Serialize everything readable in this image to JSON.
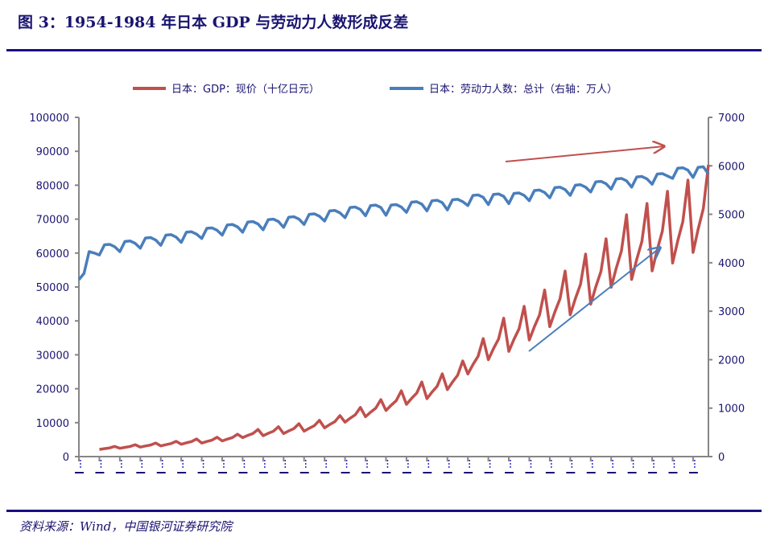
{
  "title": "图 3：1954-1984 年日本 GDP 与劳动力人数形成反差",
  "source": "资料来源：Wind，中国银河证券研究院",
  "colors": {
    "gdp": "#C0504D",
    "labor": "#4A7EBB",
    "axis": "#868686",
    "text": "#1a1470"
  },
  "chart_data": {
    "type": "line",
    "title": "1954-1984 年日本 GDP 与劳动力人数形成反差",
    "x_start": "1954Q1",
    "x_end": "1984Q4",
    "frequency": "quarterly",
    "legend_position": "top",
    "grid": false,
    "y_left": {
      "ylim": [
        0,
        100000
      ],
      "ticks": [
        0,
        10000,
        20000,
        30000,
        40000,
        50000,
        60000,
        70000,
        80000,
        90000,
        100000
      ]
    },
    "y_right": {
      "ylim": [
        0,
        7000
      ],
      "ticks": [
        0,
        1000,
        2000,
        3000,
        4000,
        5000,
        6000,
        7000
      ]
    },
    "series": [
      {
        "name": "日本：GDP：现价（十亿日元）",
        "axis": "left",
        "start_index": 4,
        "values": [
          2100,
          2340,
          2550,
          3000,
          2450,
          2730,
          2980,
          3500,
          2800,
          3120,
          3400,
          4000,
          3150,
          3510,
          3830,
          4500,
          3640,
          4060,
          4420,
          5200,
          3990,
          4450,
          4850,
          5700,
          4620,
          5150,
          5610,
          6600,
          5600,
          6240,
          6800,
          8000,
          6160,
          6860,
          7480,
          8800,
          6790,
          7570,
          8250,
          9700,
          7490,
          8350,
          9100,
          10700,
          8470,
          9440,
          10290,
          12100,
          10150,
          11310,
          12330,
          14500,
          11760,
          13100,
          14280,
          16800,
          13580,
          15130,
          16490,
          19400,
          15400,
          17160,
          18700,
          22000,
          17080,
          19030,
          20740,
          24400,
          19740,
          22000,
          23970,
          28200,
          24360,
          27140,
          29580,
          34800,
          28560,
          31820,
          34680,
          40800,
          31010,
          34550,
          37660,
          44300,
          34370,
          38300,
          41740,
          49100,
          38290,
          42670,
          46500,
          54700,
          41790,
          46570,
          50750,
          59700,
          44940,
          50080,
          54570,
          64200,
          49910,
          55610,
          60610,
          71300,
          52220,
          58190,
          63410,
          74600,
          54740,
          61000,
          66470,
          78200,
          57050,
          63570,
          69280,
          81500,
          60200,
          67080,
          73100,
          86000
        ]
      },
      {
        "name": "日本：劳动力人数：总计（右轴：万人）",
        "axis": "right",
        "start_index": 0,
        "values": [
          3650,
          3780,
          4230,
          4200,
          4160,
          4370,
          4380,
          4330,
          4230,
          4440,
          4450,
          4400,
          4300,
          4510,
          4520,
          4470,
          4360,
          4570,
          4580,
          4530,
          4420,
          4630,
          4640,
          4590,
          4500,
          4710,
          4720,
          4670,
          4570,
          4780,
          4790,
          4740,
          4630,
          4840,
          4850,
          4800,
          4680,
          4890,
          4900,
          4850,
          4730,
          4940,
          4950,
          4900,
          4790,
          5000,
          5010,
          4960,
          4860,
          5070,
          5080,
          5030,
          4930,
          5140,
          5150,
          5100,
          4970,
          5180,
          5190,
          5140,
          4980,
          5190,
          5200,
          5150,
          5040,
          5250,
          5260,
          5210,
          5070,
          5280,
          5290,
          5240,
          5090,
          5300,
          5310,
          5260,
          5180,
          5390,
          5400,
          5350,
          5200,
          5410,
          5420,
          5370,
          5220,
          5430,
          5440,
          5390,
          5280,
          5490,
          5500,
          5450,
          5340,
          5550,
          5560,
          5510,
          5390,
          5600,
          5610,
          5560,
          5460,
          5670,
          5680,
          5630,
          5520,
          5730,
          5740,
          5690,
          5560,
          5770,
          5780,
          5730,
          5620,
          5830,
          5840,
          5790,
          5740,
          5950,
          5960,
          5910,
          5760,
          5970,
          5980,
          5830
        ]
      }
    ]
  }
}
